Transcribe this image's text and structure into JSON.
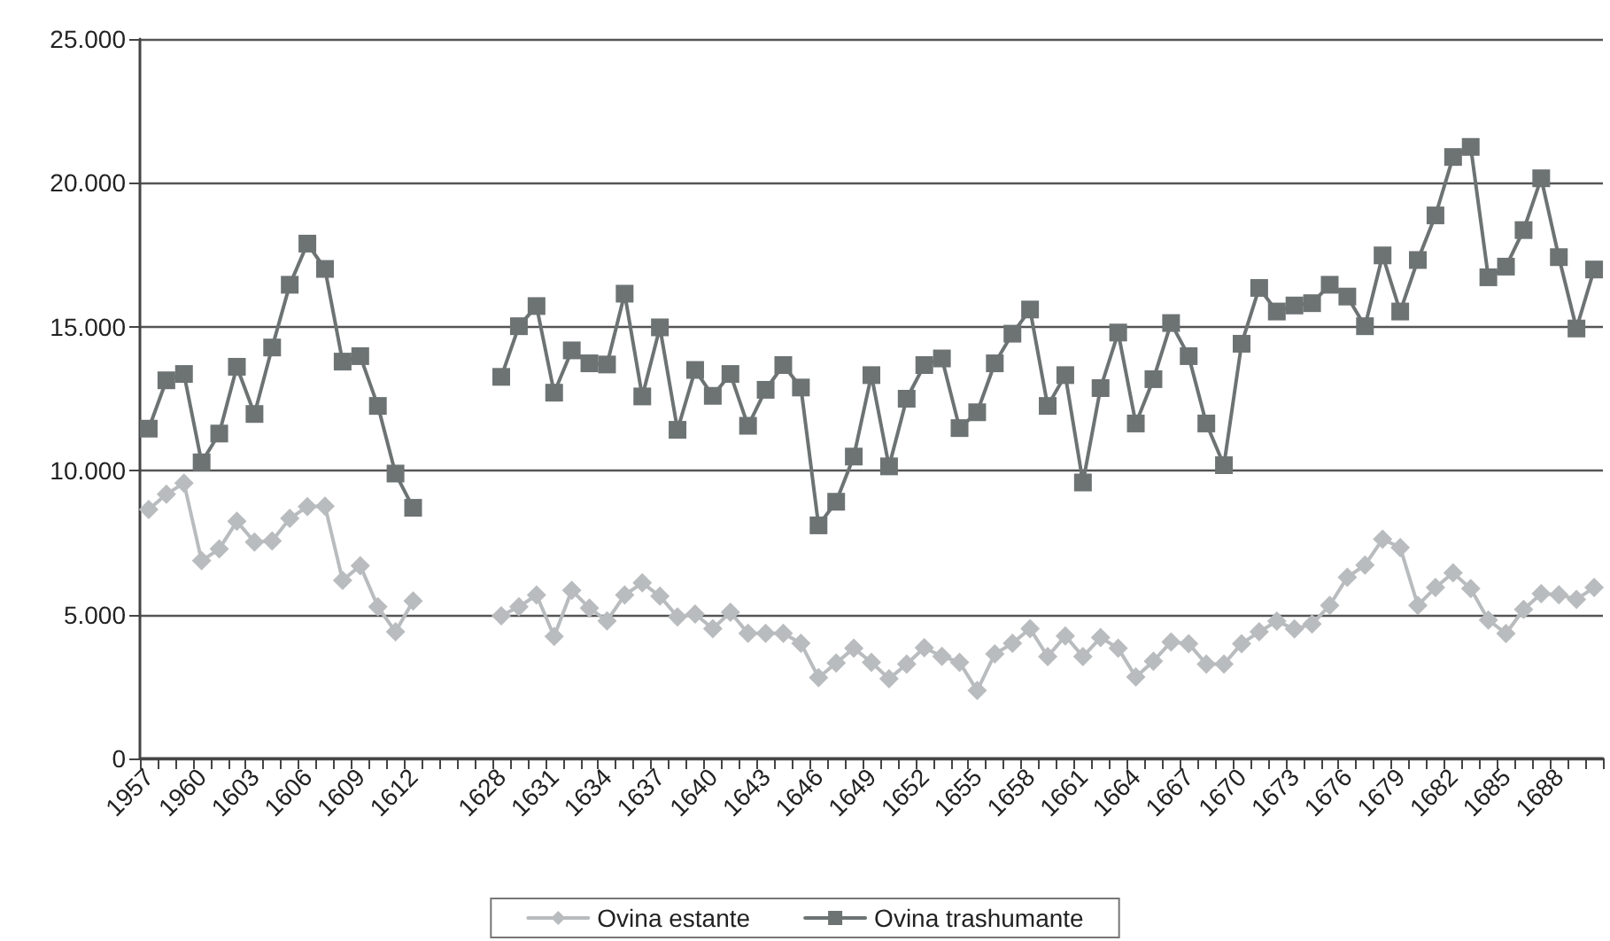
{
  "chart_data": {
    "type": "line",
    "categories": [
      "1957",
      null,
      null,
      "1960",
      null,
      null,
      "1603",
      null,
      null,
      "1606",
      null,
      null,
      "1609",
      null,
      null,
      "1612",
      null,
      null,
      null,
      null,
      "1628",
      null,
      null,
      "1631",
      null,
      null,
      "1634",
      null,
      null,
      "1637",
      null,
      null,
      "1640",
      null,
      null,
      "1643",
      null,
      null,
      "1646",
      null,
      null,
      "1649",
      null,
      null,
      "1652",
      null,
      null,
      "1655",
      null,
      null,
      "1658",
      null,
      null,
      "1661",
      null,
      null,
      "1664",
      null,
      null,
      "1667",
      null,
      null,
      "1670",
      null,
      null,
      "1673",
      null,
      null,
      "1676",
      null,
      null,
      "1679",
      null,
      null,
      "1682",
      null,
      null,
      "1685",
      null,
      null,
      "1688",
      null,
      null
    ],
    "series": [
      {
        "name": "Ovina estante",
        "color": "#b9bcbe",
        "marker": "diamond",
        "values": [
          8650,
          9180,
          9570,
          6870,
          7280,
          8240,
          7520,
          7560,
          8340,
          8750,
          8770,
          6190,
          6700,
          5270,
          4400,
          5470,
          null,
          null,
          null,
          null,
          4960,
          5270,
          5680,
          4240,
          5840,
          5230,
          4780,
          5680,
          6100,
          5640,
          4920,
          5020,
          4510,
          5080,
          4350,
          4350,
          4350,
          4000,
          2810,
          3320,
          3830,
          3340,
          2770,
          3280,
          3850,
          3550,
          3340,
          2360,
          3630,
          4000,
          4510,
          3540,
          4260,
          3540,
          4200,
          3830,
          2830,
          3380,
          4050,
          3990,
          3280,
          3280,
          3990,
          4400,
          4770,
          4500,
          4670,
          5320,
          6300,
          6720,
          7620,
          7330,
          5320,
          5940,
          6450,
          5900,
          4810,
          4340,
          5180,
          5730,
          5690,
          5530,
          5940
        ]
      },
      {
        "name": "Ovina trashumante",
        "color": "#6d7373",
        "marker": "square",
        "values": [
          11460,
          13140,
          13360,
          10290,
          11290,
          13610,
          11970,
          14280,
          16460,
          17890,
          17010,
          13790,
          13980,
          12250,
          9900,
          8710,
          null,
          null,
          null,
          null,
          13260,
          15020,
          15720,
          12710,
          14180,
          13730,
          13690,
          16150,
          12580,
          14980,
          11420,
          13500,
          12600,
          13360,
          11560,
          12810,
          13670,
          12890,
          8100,
          8920,
          10490,
          13320,
          10150,
          12500,
          13670,
          13900,
          11480,
          12030,
          13730,
          14760,
          15600,
          12250,
          13320,
          9590,
          12870,
          14800,
          11640,
          13180,
          15130,
          13980,
          11640,
          10190,
          14410,
          16350,
          15530,
          15740,
          15820,
          16460,
          16050,
          15020,
          17480,
          15530,
          17320,
          18870,
          20900,
          21250,
          16720,
          17090,
          18360,
          20160,
          17420,
          14940,
          16990
        ]
      }
    ],
    "ylim": [
      0,
      25000
    ],
    "yticks": [
      {
        "value": 0,
        "label": "0"
      },
      {
        "value": 5000,
        "label": "5.000"
      },
      {
        "value": 10000,
        "label": "10.000"
      },
      {
        "value": 15000,
        "label": "15.000"
      },
      {
        "value": 20000,
        "label": "20.000"
      },
      {
        "value": 25000,
        "label": "25.000"
      }
    ],
    "grid": "y",
    "legend": "bottom",
    "line_style": "solid"
  }
}
